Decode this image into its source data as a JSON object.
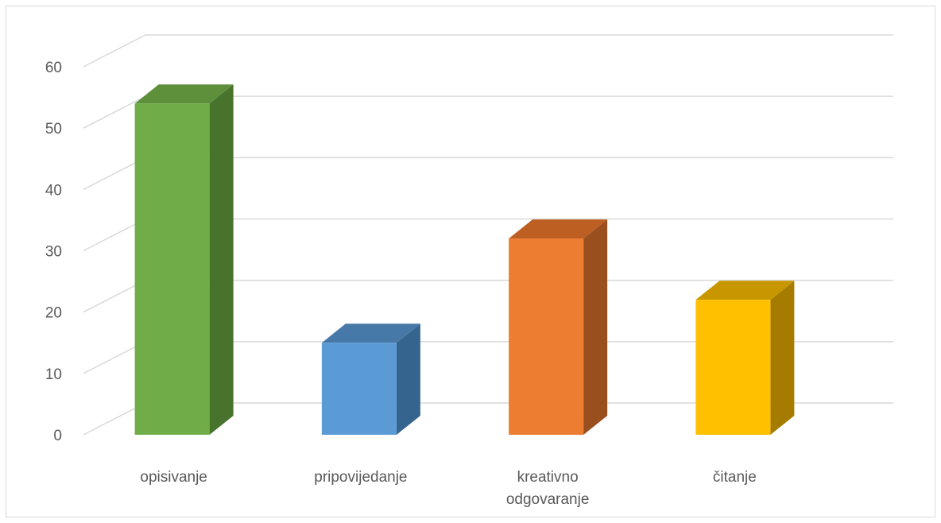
{
  "chart_data": {
    "type": "bar",
    "style": "3d-column",
    "title": "",
    "xlabel": "",
    "ylabel": "",
    "categories": [
      "opisivanje",
      "pripovijedanje",
      "kreativno odgovaranje",
      "čitanje"
    ],
    "category_lines": [
      [
        "opisivanje"
      ],
      [
        "pripovijedanje"
      ],
      [
        "kreativno",
        "odgovaranje"
      ],
      [
        "čitanje"
      ]
    ],
    "values": [
      54,
      15,
      32,
      22
    ],
    "ylim": [
      0,
      60
    ],
    "yticks": [
      "0",
      "10",
      "20",
      "30",
      "40",
      "50",
      "60"
    ],
    "grid": true,
    "legend": "none",
    "colors": {
      "front": [
        "#70ad47",
        "#5b9bd5",
        "#ed7d31",
        "#ffc000"
      ],
      "side": [
        "#48732c",
        "#35658f",
        "#9a4f1f",
        "#a57c00"
      ],
      "top": [
        "#5e8f3b",
        "#4779a8",
        "#bd5f22",
        "#c89700"
      ],
      "grid": "#d9d9d9",
      "text": "#595959"
    }
  }
}
